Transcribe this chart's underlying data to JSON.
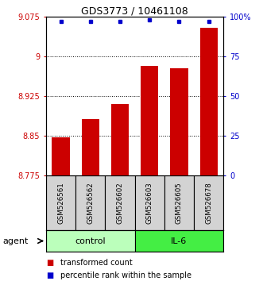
{
  "title": "GDS3773 / 10461108",
  "samples": [
    "GSM526561",
    "GSM526562",
    "GSM526602",
    "GSM526603",
    "GSM526605",
    "GSM526678"
  ],
  "bar_values": [
    8.847,
    8.882,
    8.91,
    8.982,
    8.978,
    9.055
  ],
  "percentile_values": [
    97,
    97,
    97,
    98,
    97,
    97
  ],
  "ylim_left": [
    8.775,
    9.075
  ],
  "ylim_right": [
    0,
    100
  ],
  "yticks_left": [
    8.775,
    8.85,
    8.925,
    9.0,
    9.075
  ],
  "yticks_right": [
    0,
    25,
    50,
    75,
    100
  ],
  "ytick_labels_left": [
    "8.775",
    "8.85",
    "8.925",
    "9",
    "9.075"
  ],
  "ytick_labels_right": [
    "0",
    "25",
    "50",
    "75",
    "100%"
  ],
  "hlines": [
    8.85,
    8.925,
    9.0
  ],
  "bar_color": "#cc0000",
  "dot_color": "#0000cc",
  "bar_bottom": 8.775,
  "groups": [
    {
      "label": "control",
      "indices": [
        0,
        1,
        2
      ],
      "color": "#bbffbb"
    },
    {
      "label": "IL-6",
      "indices": [
        3,
        4,
        5
      ],
      "color": "#44ee44"
    }
  ],
  "agent_label": "agent",
  "legend_bar_label": "transformed count",
  "legend_dot_label": "percentile rank within the sample",
  "bar_width": 0.6
}
